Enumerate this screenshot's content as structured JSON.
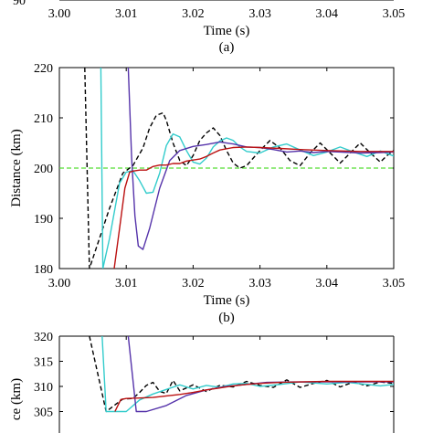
{
  "chart_data": [
    {
      "panel": "top-partial",
      "type": "line",
      "xlabel": "Time (s)",
      "caption": "(a)",
      "x_ticks": [
        "3.00",
        "3.01",
        "3.02",
        "3.03",
        "3.04",
        "3.05"
      ],
      "xlim": [
        3.0,
        3.05
      ],
      "cropped_tick_label": "90"
    },
    {
      "panel": "middle",
      "type": "line",
      "xlabel": "Time (s)",
      "ylabel": "Distance (km)",
      "caption": "(b)",
      "xlim": [
        3.0,
        3.05
      ],
      "ylim": [
        180,
        220
      ],
      "x_ticks": [
        "3.00",
        "3.01",
        "3.02",
        "3.03",
        "3.04",
        "3.05"
      ],
      "y_ticks": [
        "180",
        "190",
        "200",
        "210",
        "220"
      ],
      "reference_line": {
        "y": 200,
        "color": "#55dd33",
        "style": "dashed"
      },
      "series": [
        {
          "color": "#000000",
          "style": "dashed",
          "x": [
            3.0038,
            3.0045,
            3.0075,
            3.0095,
            3.011,
            3.0125,
            3.0135,
            3.0145,
            3.0155,
            3.016,
            3.017,
            3.018,
            3.019,
            3.02,
            3.021,
            3.022,
            3.023,
            3.024,
            3.025,
            3.026,
            3.027,
            3.028,
            3.029,
            3.03,
            3.0315,
            3.033,
            3.0345,
            3.036,
            3.0375,
            3.039,
            3.0405,
            3.042,
            3.0435,
            3.045,
            3.0465,
            3.048,
            3.049,
            3.05
          ],
          "y": [
            220,
            180,
            192,
            199,
            200.5,
            204,
            208,
            210.5,
            211,
            209.5,
            205,
            201.5,
            200.5,
            202.5,
            205.5,
            207,
            208,
            206.5,
            203.5,
            201,
            200,
            200.5,
            202,
            203.5,
            205.5,
            204,
            201.5,
            200.5,
            203,
            205,
            203,
            201,
            203,
            205,
            203,
            201.2,
            202.5,
            203.5
          ]
        },
        {
          "color": "#33cccc",
          "style": "solid",
          "x": [
            3.0062,
            3.0065,
            3.0075,
            3.009,
            3.01,
            3.011,
            3.012,
            3.013,
            3.014,
            3.015,
            3.016,
            3.017,
            3.018,
            3.019,
            3.02,
            3.021,
            3.022,
            3.023,
            3.024,
            3.025,
            3.026,
            3.027,
            3.028,
            3.03,
            3.032,
            3.034,
            3.036,
            3.038,
            3.04,
            3.042,
            3.044,
            3.046,
            3.048,
            3.05
          ],
          "y": [
            220,
            180,
            186,
            197,
            199.2,
            199.5,
            197.5,
            195,
            195.2,
            199,
            204.5,
            206.8,
            206.2,
            203.5,
            201.2,
            200.8,
            202,
            204.2,
            205.4,
            206,
            205.5,
            204.2,
            203.3,
            203,
            204.2,
            204.8,
            203.6,
            202.5,
            203.2,
            204.2,
            203.2,
            202.3,
            203.4,
            202.4
          ]
        },
        {
          "color": "#5533aa",
          "style": "solid",
          "x": [
            3.0103,
            3.0108,
            3.0113,
            3.0118,
            3.0125,
            3.0135,
            3.015,
            3.0165,
            3.018,
            3.02,
            3.022,
            3.024,
            3.026,
            3.028,
            3.03,
            3.032,
            3.034,
            3.036,
            3.038,
            3.04,
            3.042,
            3.045,
            3.048,
            3.05
          ],
          "y": [
            220,
            202,
            190.5,
            184.5,
            183.8,
            188,
            196,
            201.5,
            203.5,
            204.3,
            204.7,
            205.2,
            204.8,
            204.2,
            204.1,
            203.7,
            203.2,
            203.4,
            203.1,
            203.3,
            203.2,
            203,
            203.1,
            203.2
          ]
        },
        {
          "color": "#bb1111",
          "style": "solid",
          "x": [
            3.0082,
            3.009,
            3.0098,
            3.0105,
            3.011,
            3.012,
            3.013,
            3.014,
            3.015,
            3.016,
            3.017,
            3.018,
            3.019,
            3.02,
            3.021,
            3.022,
            3.023,
            3.024,
            3.026,
            3.028,
            3.03,
            3.033,
            3.036,
            3.04,
            3.045,
            3.05
          ],
          "y": [
            180,
            188,
            196,
            199.2,
            199.4,
            199.6,
            199.6,
            200.3,
            200.6,
            200.6,
            200.9,
            200.9,
            201.4,
            201.6,
            201.8,
            202.3,
            203,
            203.6,
            204.1,
            204.2,
            204.1,
            203.9,
            203.7,
            203.5,
            203.3,
            203.3
          ]
        }
      ]
    },
    {
      "panel": "bottom-partial",
      "type": "line",
      "ylabel": "ce (km)",
      "xlim": [
        3.0,
        3.05
      ],
      "ylim": [
        305,
        320
      ],
      "y_ticks": [
        "320",
        "315",
        "310",
        "305"
      ],
      "series": [
        {
          "color": "#000000",
          "style": "dashed",
          "x": [
            3.0045,
            3.007,
            3.0095,
            3.011,
            3.012,
            3.013,
            3.014,
            3.015,
            3.016,
            3.017,
            3.018,
            3.019,
            3.02,
            3.022,
            3.024,
            3.026,
            3.028,
            3.03,
            3.032,
            3.034,
            3.036,
            3.038,
            3.04,
            3.042,
            3.044,
            3.046,
            3.048,
            3.05
          ],
          "y": [
            320,
            305,
            307.5,
            307.6,
            308.8,
            310.2,
            310.8,
            309,
            308.6,
            311.2,
            309.1,
            309.7,
            310.3,
            309,
            310.2,
            309.9,
            311,
            310.2,
            309.8,
            311.3,
            309.8,
            310.6,
            311.2,
            309.9,
            310.9,
            310.1,
            310.9,
            310.6
          ]
        },
        {
          "color": "#33cccc",
          "style": "solid",
          "x": [
            3.0064,
            3.007,
            3.01,
            3.012,
            3.014,
            3.016,
            3.018,
            3.02,
            3.022,
            3.024,
            3.026,
            3.028,
            3.03,
            3.033,
            3.036,
            3.04,
            3.043,
            3.046,
            3.048,
            3.05
          ],
          "y": [
            320,
            305,
            305,
            307.3,
            308.5,
            309.4,
            310.3,
            309.5,
            310.2,
            309.8,
            310.5,
            310.6,
            310,
            310.4,
            310.9,
            310.5,
            310.8,
            310.4,
            310.1,
            310.4
          ]
        },
        {
          "color": "#5533aa",
          "style": "solid",
          "x": [
            3.0103,
            3.0115,
            3.013,
            3.016,
            3.019,
            3.022,
            3.025,
            3.028,
            3.031,
            3.035,
            3.04,
            3.045,
            3.05
          ],
          "y": [
            320,
            305,
            305,
            306.2,
            308.2,
            309.3,
            310,
            310.4,
            310.8,
            310.9,
            310.9,
            310.9,
            310.9
          ]
        },
        {
          "color": "#bb1111",
          "style": "solid",
          "x": [
            3.0083,
            3.0092,
            3.01,
            3.012,
            3.014,
            3.016,
            3.018,
            3.02,
            3.022,
            3.024,
            3.026,
            3.028,
            3.03,
            3.033,
            3.036,
            3.04,
            3.045,
            3.05
          ],
          "y": [
            305,
            307.4,
            307.6,
            307.7,
            307.8,
            308.1,
            308.4,
            308.8,
            309.3,
            309.7,
            310.1,
            310.4,
            310.6,
            310.8,
            310.9,
            311,
            311,
            311
          ]
        }
      ]
    }
  ]
}
